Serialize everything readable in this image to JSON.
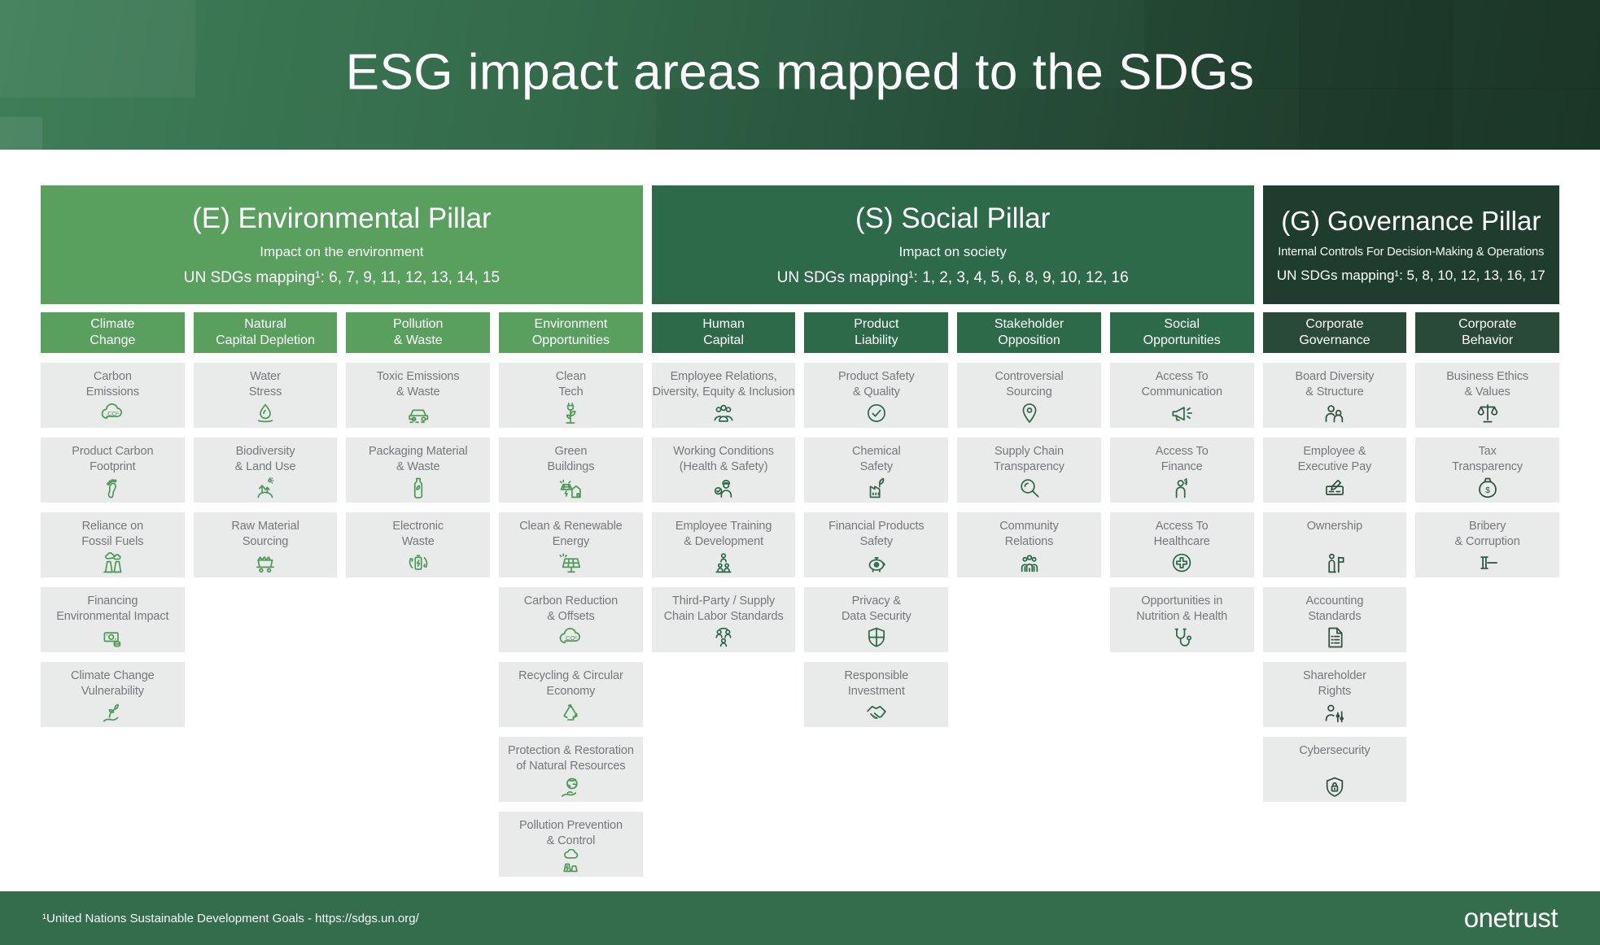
{
  "header": {
    "title": "ESG impact areas mapped to the SDGs"
  },
  "colors": {
    "banner_left": "#3F7E58",
    "banner_right": "#1D392A",
    "env_green": "#59A05F",
    "env_icon": "#4E9B57",
    "soc_green": "#2C6A4A",
    "gov_dark": "#1F3D2E",
    "gov_col": "#2A4A39",
    "gov_icon": "#2F5240",
    "card_bg": "#E9EAEA",
    "card_text": "#75787B",
    "footer_bg": "#336D4C"
  },
  "pillars": [
    {
      "id": "environmental",
      "flex": 745,
      "title": "(E) Environmental Pillar",
      "subtitle": "Impact on the environment",
      "mapping": "UN SDGs mapping¹: 6, 7, 9, 11, 12, 13, 14, 15",
      "columns": [
        {
          "label": "Climate\nChange",
          "cards": [
            {
              "label": "Carbon\nEmissions",
              "icon": "co2-cloud-icon"
            },
            {
              "label": "Product Carbon\nFootprint",
              "icon": "footprint-icon"
            },
            {
              "label": "Reliance on\nFossil Fuels",
              "icon": "power-plant-icon"
            },
            {
              "label": "Financing\nEnvironmental Impact",
              "icon": "banknote-coins-icon"
            },
            {
              "label": "Climate Change\nVulnerability",
              "icon": "hand-sprout-icon"
            }
          ]
        },
        {
          "label": "Natural\nCapital Depletion",
          "cards": [
            {
              "label": "Water\nStress",
              "icon": "water-drop-icon"
            },
            {
              "label": "Biodiversity\n& Land Use",
              "icon": "trees-icon"
            },
            {
              "label": "Raw Material\nSourcing",
              "icon": "mining-cart-icon"
            }
          ]
        },
        {
          "label": "Pollution\n& Waste",
          "cards": [
            {
              "label": "Toxic Emissions\n& Waste",
              "icon": "car-emissions-icon"
            },
            {
              "label": "Packaging Material\n& Waste",
              "icon": "bottle-icon"
            },
            {
              "label": "Electronic\nWaste",
              "icon": "battery-recycle-icon"
            }
          ]
        },
        {
          "label": "Environment\nOpportunities",
          "cards": [
            {
              "label": "Clean\nTech",
              "icon": "plant-plug-icon"
            },
            {
              "label": "Green\nBuildings",
              "icon": "solar-house-icon"
            },
            {
              "label": "Clean & Renewable\nEnergy",
              "icon": "solar-panel-icon"
            },
            {
              "label": "Carbon Reduction\n& Offsets",
              "icon": "co2-cloud-icon"
            },
            {
              "label": "Recycling & Circular\nEconomy",
              "icon": "recycle-icon"
            },
            {
              "label": "Protection & Restoration\nof Natural Resources",
              "icon": "globe-hand-icon"
            },
            {
              "label": "Pollution Prevention\n& Control",
              "icon": "factory-cloud-icon"
            }
          ]
        }
      ]
    },
    {
      "id": "social",
      "flex": 745,
      "title": "(S) Social Pillar",
      "subtitle": "Impact on society",
      "mapping": "UN SDGs mapping¹: 1, 2, 3, 4, 5, 6, 8, 9, 10, 12, 16",
      "columns": [
        {
          "label": "Human\nCapital",
          "cards": [
            {
              "label": "Employee Relations,\nDiversity, Equity & Inclusion",
              "icon": "people-group-icon"
            },
            {
              "label": "Working Conditions\n(Health & Safety)",
              "icon": "worker-check-icon"
            },
            {
              "label": "Employee Training\n& Development",
              "icon": "trainer-group-icon"
            },
            {
              "label": "Third-Party / Supply\nChain Labor Standards",
              "icon": "people-network-icon"
            }
          ]
        },
        {
          "label": "Product\nLiability",
          "cards": [
            {
              "label": "Product Safety\n& Quality",
              "icon": "check-circle-icon"
            },
            {
              "label": "Chemical\nSafety",
              "icon": "eco-factory-icon"
            },
            {
              "label": "Financial Products\nSafety",
              "icon": "piggy-bank-icon"
            },
            {
              "label": "Privacy &\nData Security",
              "icon": "shield-icon"
            },
            {
              "label": "Responsible\nInvestment",
              "icon": "handshake-icon"
            }
          ]
        },
        {
          "label": "Stakeholder\nOpposition",
          "cards": [
            {
              "label": "Controversial\nSourcing",
              "icon": "map-pin-icon"
            },
            {
              "label": "Supply Chain\nTransparency",
              "icon": "magnifier-icon"
            },
            {
              "label": "Community\nRelations",
              "icon": "community-icon"
            }
          ]
        },
        {
          "label": "Social\nOpportunities",
          "cards": [
            {
              "label": "Access To\nCommunication",
              "icon": "megaphone-icon"
            },
            {
              "label": "Access To\nFinance",
              "icon": "person-dollar-icon"
            },
            {
              "label": "Access To\nHealthcare",
              "icon": "medical-cross-icon"
            },
            {
              "label": "Opportunities in\nNutrition & Health",
              "icon": "stethoscope-icon"
            }
          ]
        }
      ]
    },
    {
      "id": "governance",
      "flex": 367,
      "title": "(G) Governance Pillar",
      "subtitle": "Internal Controls For Decision-Making & Operations",
      "mapping": "UN SDGs mapping¹: 5, 8, 10, 12, 13, 16, 17",
      "columns": [
        {
          "label": "Corporate\nGovernance",
          "cards": [
            {
              "label": "Board Diversity\n& Structure",
              "icon": "two-people-icon"
            },
            {
              "label": "Employee &\nExecutive Pay",
              "icon": "paycheck-pen-icon"
            },
            {
              "label": "Ownership",
              "icon": "person-flag-icon"
            },
            {
              "label": "Accounting\nStandards",
              "icon": "document-checklist-icon"
            },
            {
              "label": "Shareholder\nRights",
              "icon": "person-sliders-icon"
            },
            {
              "label": "Cybersecurity",
              "icon": "shield-lock-icon"
            }
          ]
        },
        {
          "label": "Corporate\nBehavior",
          "cards": [
            {
              "label": "Business Ethics\n& Values",
              "icon": "scales-icon"
            },
            {
              "label": "Tax\nTransparency",
              "icon": "money-bag-icon"
            },
            {
              "label": "Bribery\n& Corruption",
              "icon": "gavel-icon"
            }
          ]
        }
      ]
    }
  ],
  "footer": {
    "note": "¹United Nations Sustainable Development Goals - https://sdgs.un.org/",
    "brand": "onetrust"
  }
}
